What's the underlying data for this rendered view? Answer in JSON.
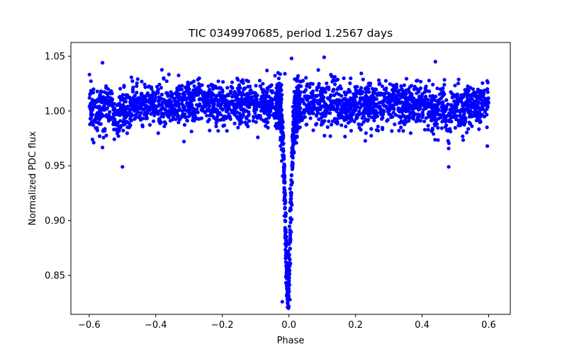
{
  "chart_data": {
    "type": "scatter",
    "title": "TIC 0349970685, period 1.2567 days",
    "xlabel": "Phase",
    "ylabel": "Normalized PDC flux",
    "xlim": [
      -0.655,
      0.665
    ],
    "ylim": [
      0.8145,
      1.0625
    ],
    "xticks": [
      -0.6,
      -0.4,
      -0.2,
      0.0,
      0.2,
      0.4,
      0.6
    ],
    "xtick_labels": [
      "−0.6",
      "−0.4",
      "−0.2",
      "0.0",
      "0.2",
      "0.4",
      "0.6"
    ],
    "yticks": [
      0.85,
      0.9,
      0.95,
      1.0,
      1.05
    ],
    "ytick_labels": [
      "0.85",
      "0.90",
      "0.95",
      "1.00",
      "1.05"
    ],
    "grid": false,
    "marker_color": "#0000ff",
    "series": [
      {
        "phase_range": [
          -0.6,
          0.6
        ],
        "baseline_flux": 1.006,
        "scatter_sd": 0.01,
        "primary_eclipse": {
          "center": -0.003,
          "depth": 0.165,
          "min_flux": 0.825
        },
        "secondary_eclipses": [
          {
            "center": -0.52,
            "min_flux": 0.95
          },
          {
            "center": 0.48,
            "min_flux": 0.95
          }
        ],
        "outliers": [
          {
            "x": -0.56,
            "y": 1.044
          },
          {
            "x": 0.008,
            "y": 1.048
          },
          {
            "x": 0.106,
            "y": 1.049
          },
          {
            "x": 0.44,
            "y": 1.045
          },
          {
            "x": -0.5,
            "y": 0.949
          },
          {
            "x": 0.48,
            "y": 0.949
          },
          {
            "x": 0.596,
            "y": 0.968
          },
          {
            "x": -0.59,
            "y": 0.974
          },
          {
            "x": -0.066,
            "y": 1.037
          },
          {
            "x": -0.012,
            "y": 1.034
          },
          {
            "x": -0.02,
            "y": 0.826
          },
          {
            "x": 0.003,
            "y": 0.828
          }
        ]
      }
    ]
  }
}
